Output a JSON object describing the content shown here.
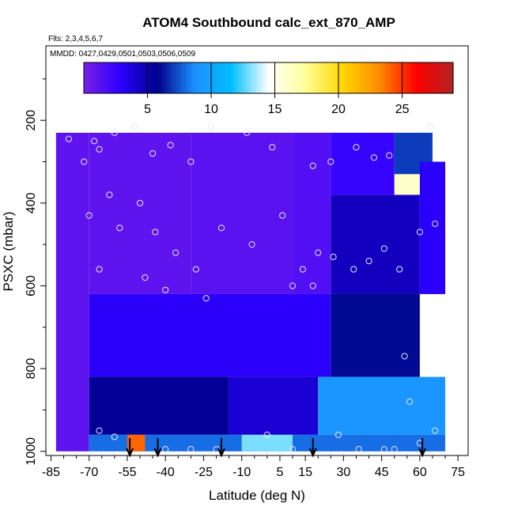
{
  "chart_data": {
    "type": "heatmap",
    "title": "ATOM4 Southbound calc_ext_870_AMP",
    "subtitle_flights": "Flts: 2,3,4,5,6,7",
    "subtitle_dates": "MMDD: 0427,0429,0501,0503,0506,0509",
    "xlabel": "Latitude (deg N)",
    "ylabel": "PSXC (mbar)",
    "xlim": [
      -87,
      79
    ],
    "ylim": [
      1010,
      20
    ],
    "x_ticks": [
      -85,
      -70,
      -55,
      -40,
      -25,
      -10,
      5,
      15,
      30,
      45,
      60,
      75
    ],
    "y_ticks": [
      200,
      400,
      600,
      800,
      1000
    ],
    "colorbar": {
      "range": [
        0,
        29
      ],
      "ticks": [
        5,
        10,
        15,
        20,
        25
      ],
      "colors": [
        "#7b1fe6",
        "#2b00ff",
        "#00008b",
        "#1e90ff",
        "#00bfff",
        "#ffffff",
        "#ffff99",
        "#ffd700",
        "#ff8c00",
        "#ff0000",
        "#b22222"
      ]
    },
    "heatmap_regions": [
      {
        "lat": [
          -83,
          -70
        ],
        "p": [
          230,
          1000
        ],
        "value": 1.0
      },
      {
        "lat": [
          -70,
          -30
        ],
        "p": [
          230,
          620
        ],
        "value": 1.0
      },
      {
        "lat": [
          -30,
          10
        ],
        "p": [
          230,
          620
        ],
        "value": 1.2
      },
      {
        "lat": [
          10,
          25
        ],
        "p": [
          230,
          620
        ],
        "value": 1.5
      },
      {
        "lat": [
          25,
          50
        ],
        "p": [
          230,
          380
        ],
        "value": 2.5
      },
      {
        "lat": [
          50,
          65
        ],
        "p": [
          230,
          380
        ],
        "value": 7.0
      },
      {
        "lat": [
          25,
          60
        ],
        "p": [
          380,
          620
        ],
        "value": 4.5
      },
      {
        "lat": [
          60,
          70
        ],
        "p": [
          300,
          620
        ],
        "value": 3.0
      },
      {
        "lat": [
          -70,
          25
        ],
        "p": [
          620,
          820
        ],
        "value": 3.0
      },
      {
        "lat": [
          25,
          60
        ],
        "p": [
          620,
          820
        ],
        "value": 6.0
      },
      {
        "lat": [
          -70,
          -15
        ],
        "p": [
          820,
          960
        ],
        "value": 5.5
      },
      {
        "lat": [
          -15,
          20
        ],
        "p": [
          820,
          960
        ],
        "value": 4.0
      },
      {
        "lat": [
          20,
          70
        ],
        "p": [
          820,
          960
        ],
        "value": 9.0
      },
      {
        "lat": [
          -70,
          70
        ],
        "p": [
          960,
          1000
        ],
        "value": 8.0
      },
      {
        "lat": [
          -55,
          -48
        ],
        "p": [
          960,
          1000
        ],
        "value": 24.0
      },
      {
        "lat": [
          -10,
          10
        ],
        "p": [
          960,
          1000
        ],
        "value": 13.0
      },
      {
        "lat": [
          50,
          60
        ],
        "p": [
          330,
          380
        ],
        "value": 16.0
      }
    ],
    "observations": [
      [
        -78,
        245
      ],
      [
        -72,
        300
      ],
      [
        -68,
        250
      ],
      [
        -66,
        270
      ],
      [
        -60,
        230
      ],
      [
        -52,
        215
      ],
      [
        -45,
        280
      ],
      [
        -38,
        260
      ],
      [
        -30,
        300
      ],
      [
        -22,
        215
      ],
      [
        -8,
        230
      ],
      [
        2,
        265
      ],
      [
        18,
        310
      ],
      [
        25,
        300
      ],
      [
        35,
        265
      ],
      [
        42,
        290
      ],
      [
        48,
        285
      ],
      [
        64,
        215
      ],
      [
        -70,
        430
      ],
      [
        -62,
        380
      ],
      [
        -58,
        460
      ],
      [
        -50,
        400
      ],
      [
        -44,
        470
      ],
      [
        -36,
        520
      ],
      [
        -28,
        560
      ],
      [
        -18,
        460
      ],
      [
        -6,
        500
      ],
      [
        6,
        430
      ],
      [
        14,
        560
      ],
      [
        20,
        520
      ],
      [
        26,
        530
      ],
      [
        34,
        560
      ],
      [
        40,
        540
      ],
      [
        46,
        510
      ],
      [
        52,
        560
      ],
      [
        60,
        470
      ],
      [
        66,
        450
      ],
      [
        -66,
        560
      ],
      [
        -48,
        580
      ],
      [
        -40,
        610
      ],
      [
        -24,
        630
      ],
      [
        10,
        600
      ],
      [
        18,
        600
      ],
      [
        54,
        770
      ],
      [
        56,
        880
      ],
      [
        66,
        950
      ],
      [
        60,
        980
      ],
      [
        -66,
        950
      ],
      [
        -60,
        965
      ],
      [
        -40,
        995
      ],
      [
        -30,
        995
      ],
      [
        -20,
        995
      ],
      [
        0,
        960
      ],
      [
        10,
        995
      ],
      [
        28,
        960
      ],
      [
        36,
        995
      ],
      [
        46,
        995
      ],
      [
        50,
        995
      ]
    ],
    "annotations": [
      {
        "label": "flight-marker",
        "lat": -54
      },
      {
        "label": "flight-marker",
        "lat": -43
      },
      {
        "label": "flight-marker",
        "lat": -18
      },
      {
        "label": "flight-marker",
        "lat": 18
      },
      {
        "label": "flight-marker",
        "lat": 61
      }
    ]
  }
}
